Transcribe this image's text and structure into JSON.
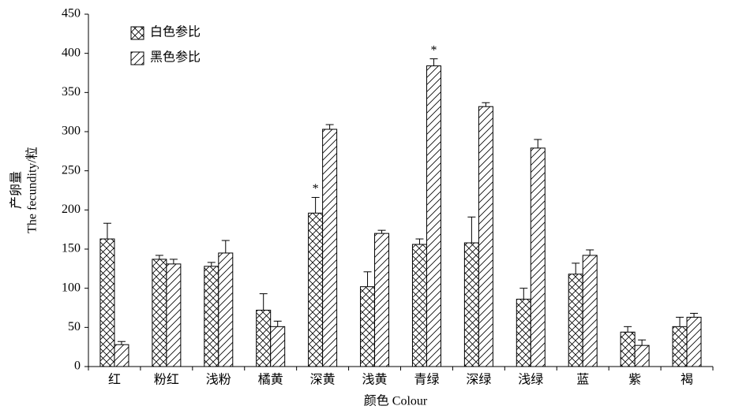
{
  "chart_data": {
    "type": "bar",
    "x_label": "颜色 Colour",
    "y_label": [
      "产卵量",
      "The fecundity/粒"
    ],
    "categories": [
      "红",
      "粉红",
      "浅粉",
      "橘黄",
      "深黄",
      "浅黄",
      "青绿",
      "深绿",
      "浅绿",
      "蓝",
      "紫",
      "褐"
    ],
    "series": [
      {
        "name": "白色参比",
        "color": "#000000",
        "pattern": "crosshatch",
        "values": [
          163,
          137,
          128,
          72,
          196,
          102,
          156,
          158,
          86,
          118,
          44,
          51
        ],
        "errors": [
          20,
          5,
          5,
          21,
          20,
          19,
          7,
          33,
          14,
          14,
          7,
          12
        ],
        "significance": [
          null,
          null,
          null,
          null,
          "*",
          null,
          null,
          null,
          null,
          null,
          null,
          null
        ]
      },
      {
        "name": "黑色参比",
        "color": "#000000",
        "pattern": "diagonal",
        "values": [
          28,
          131,
          145,
          51,
          303,
          170,
          384,
          332,
          279,
          142,
          27,
          63
        ],
        "errors": [
          4,
          6,
          16,
          7,
          6,
          4,
          9,
          5,
          11,
          7,
          7,
          5
        ],
        "significance": [
          null,
          null,
          null,
          null,
          null,
          null,
          "*",
          null,
          null,
          null,
          null,
          null
        ]
      }
    ],
    "ylim": [
      0,
      450
    ],
    "yticks": [
      0,
      50,
      100,
      150,
      200,
      250,
      300,
      350,
      400,
      450
    ],
    "legend": "upper left"
  }
}
